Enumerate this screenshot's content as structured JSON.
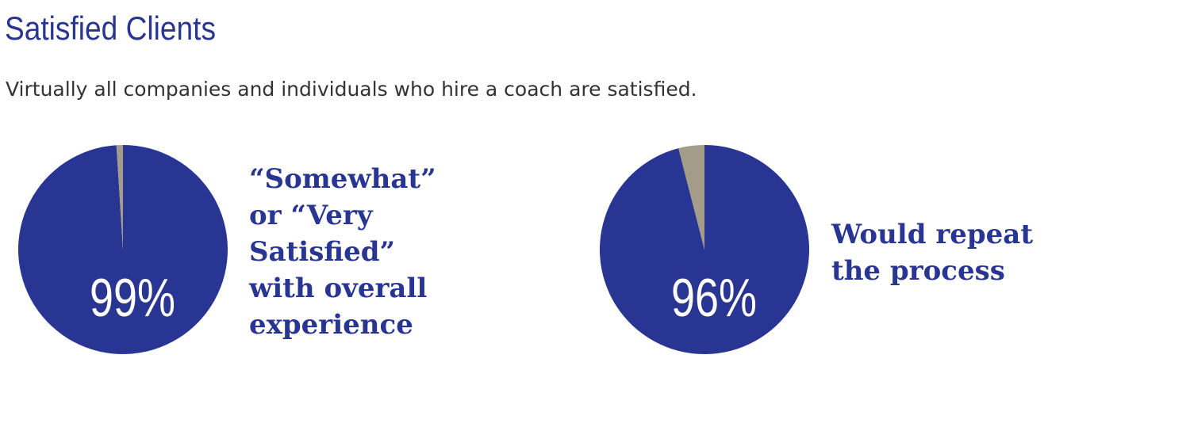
{
  "header": {
    "title": "Satisfied Clients",
    "subtitle": "Virtually all companies and individuals who hire a coach are satisfied."
  },
  "chart_data": [
    {
      "type": "pie",
      "values": [
        99,
        1
      ],
      "value_labels": [
        "99%",
        null
      ],
      "colors": [
        "#283593",
        "#a39c88"
      ],
      "caption": [
        "“Somewhat”",
        "or “Very",
        "Satisfied”",
        "with overall",
        "experience"
      ]
    },
    {
      "type": "pie",
      "values": [
        96,
        4
      ],
      "value_labels": [
        "96%",
        null
      ],
      "colors": [
        "#283593",
        "#a39c88"
      ],
      "caption": [
        "Would repeat",
        "the process"
      ]
    }
  ]
}
